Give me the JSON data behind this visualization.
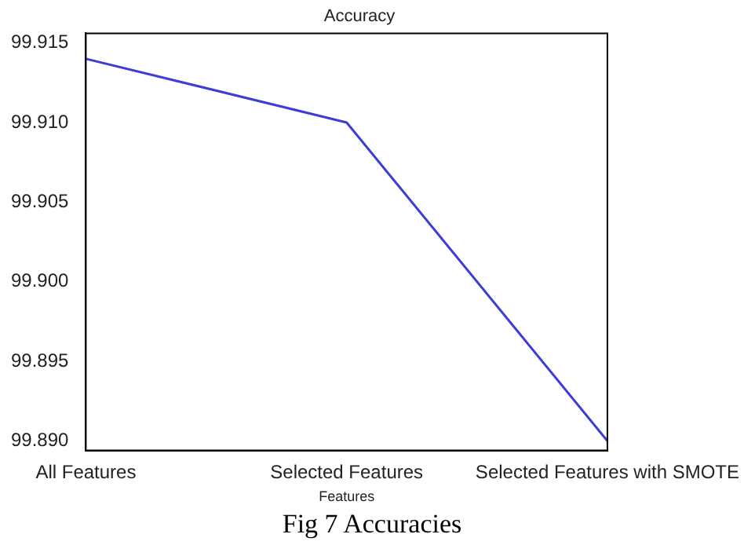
{
  "chart_data": {
    "type": "line",
    "title": "Accuracy",
    "xlabel": "Features",
    "categories": [
      "All Features",
      "Selected Features",
      "Selected Features with SMOTE"
    ],
    "series": [
      {
        "color": "#3c3cd8",
        "values": [
          99.914,
          99.91,
          99.89
        ]
      }
    ],
    "ylim": [
      99.8894,
      99.9156
    ],
    "yticks": [
      {
        "value": 99.89,
        "label": "99.890"
      },
      {
        "value": 99.895,
        "label": "99.895"
      },
      {
        "value": 99.9,
        "label": "99.900"
      },
      {
        "value": 99.905,
        "label": "99.905"
      },
      {
        "value": 99.91,
        "label": "99.910"
      },
      {
        "value": 99.915,
        "label": "99.915"
      }
    ],
    "grid": false,
    "legend": false,
    "marker": "none",
    "line_style": "solid",
    "annotations": [
      "Fig 7 Accuracies"
    ]
  }
}
